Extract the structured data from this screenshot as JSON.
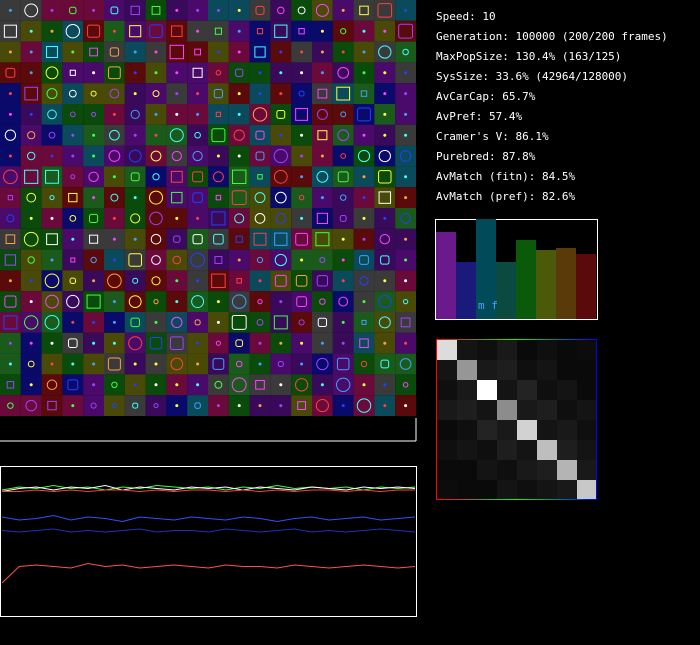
{
  "stats": [
    "Speed: 10",
    "Generation: 100000 (200/200 frames)",
    "MaxPopSize: 130.4% (163/125)",
    "SysSize: 33.6% (42964/128000)",
    "AvCarCap: 65.7%",
    "AvPref: 57.4%",
    "Cramer's V: 86.1%",
    "Purebred: 87.8%",
    "AvMatch (fitn): 84.5%",
    "AvMatch (pref): 82.6%"
  ],
  "bar_panel": {
    "label": "m f",
    "values": [
      87,
      57,
      100,
      57,
      79,
      69,
      71,
      65
    ],
    "colors": [
      "#6a1a8a",
      "#1a1a7a",
      "#004a5a",
      "#0a4a40",
      "#0a5a0a",
      "#4a5a08",
      "#5a3a08",
      "#5a0a0a"
    ]
  },
  "matrix": [
    [
      220,
      20,
      15,
      25,
      10,
      15,
      10,
      12
    ],
    [
      20,
      150,
      25,
      30,
      15,
      20,
      10,
      10
    ],
    [
      15,
      25,
      255,
      20,
      35,
      15,
      20,
      10
    ],
    [
      25,
      30,
      20,
      140,
      25,
      30,
      15,
      20
    ],
    [
      10,
      15,
      35,
      25,
      210,
      20,
      25,
      15
    ],
    [
      15,
      20,
      15,
      30,
      20,
      190,
      30,
      20
    ],
    [
      10,
      10,
      20,
      15,
      25,
      30,
      180,
      25
    ],
    [
      12,
      10,
      10,
      20,
      15,
      20,
      25,
      200
    ]
  ],
  "history": [
    {
      "color": "#40ff40",
      "values": [
        84,
        86,
        85,
        87,
        85,
        86,
        84,
        86,
        85,
        87,
        86,
        85,
        86,
        84,
        86,
        85,
        87,
        85,
        86,
        85,
        86,
        84,
        86,
        85,
        86
      ]
    },
    {
      "color": "#ffffff",
      "values": [
        83,
        85,
        86,
        84,
        86,
        85,
        87,
        84,
        86,
        85,
        84,
        86,
        85,
        86,
        84,
        86,
        85,
        84,
        86,
        85,
        84,
        86,
        85,
        86,
        85
      ]
    },
    {
      "color": "#ff4040",
      "values": [
        83,
        83,
        84,
        83,
        84,
        83,
        84,
        84,
        83,
        84,
        83,
        84,
        84,
        83,
        84,
        83,
        84,
        83,
        84,
        84,
        83,
        84,
        83,
        84,
        84
      ]
    },
    {
      "color": "#3050ff",
      "values": [
        66,
        64,
        65,
        67,
        64,
        66,
        65,
        63,
        66,
        65,
        64,
        66,
        65,
        64,
        66,
        65,
        63,
        65,
        66,
        64,
        65,
        66,
        64,
        65,
        66
      ]
    },
    {
      "color": "#2030c0",
      "values": [
        57,
        56,
        57,
        58,
        56,
        57,
        56,
        57,
        58,
        56,
        57,
        57,
        56,
        58,
        57,
        56,
        57,
        58,
        56,
        57,
        56,
        57,
        58,
        57,
        56
      ]
    },
    {
      "color": "#ff5050",
      "values": [
        22,
        33,
        34,
        33,
        32,
        35,
        33,
        34,
        32,
        33,
        34,
        33,
        32,
        34,
        33,
        33,
        32,
        34,
        33,
        32,
        33,
        34,
        33,
        32,
        33
      ]
    }
  ]
}
